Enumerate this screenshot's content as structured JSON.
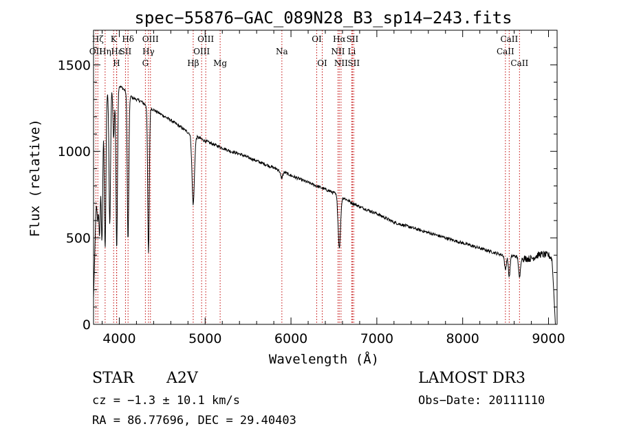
{
  "chart_data": {
    "type": "line",
    "title": "spec−55876−GAC_089N28_B3_sp14−243.fits",
    "xlabel": "Wavelength (Å)",
    "ylabel": "Flux (relative)",
    "xlim": [
      3700,
      9100
    ],
    "ylim": [
      0,
      1700
    ],
    "x_ticks": [
      4000,
      5000,
      6000,
      7000,
      8000,
      9000
    ],
    "x_tick_labels": [
      "4000",
      "5000",
      "6000",
      "7000",
      "8000",
      "9000"
    ],
    "y_ticks": [
      0,
      500,
      1000,
      1500
    ],
    "y_tick_labels": [
      "0",
      "500",
      "1000",
      "1500"
    ],
    "grid": false,
    "series": [
      {
        "name": "flux",
        "continuum_points": [
          [
            3700,
            150
          ],
          [
            3730,
            700
          ],
          [
            3760,
            1050
          ],
          [
            3800,
            1200
          ],
          [
            3850,
            1330
          ],
          [
            3900,
            1380
          ],
          [
            3960,
            1380
          ],
          [
            4000,
            1380
          ],
          [
            4050,
            1360
          ],
          [
            4100,
            1335
          ],
          [
            4150,
            1310
          ],
          [
            4200,
            1300
          ],
          [
            4250,
            1290
          ],
          [
            4300,
            1270
          ],
          [
            4400,
            1240
          ],
          [
            4500,
            1210
          ],
          [
            4600,
            1180
          ],
          [
            4700,
            1145
          ],
          [
            4800,
            1110
          ],
          [
            4900,
            1085
          ],
          [
            5000,
            1060
          ],
          [
            5100,
            1040
          ],
          [
            5200,
            1020
          ],
          [
            5300,
            1000
          ],
          [
            5400,
            985
          ],
          [
            5500,
            965
          ],
          [
            5600,
            945
          ],
          [
            5700,
            925
          ],
          [
            5800,
            905
          ],
          [
            5900,
            885
          ],
          [
            6000,
            860
          ],
          [
            6100,
            840
          ],
          [
            6200,
            820
          ],
          [
            6300,
            800
          ],
          [
            6400,
            780
          ],
          [
            6500,
            760
          ],
          [
            6600,
            735
          ],
          [
            6700,
            705
          ],
          [
            6800,
            680
          ],
          [
            6900,
            660
          ],
          [
            7000,
            640
          ],
          [
            7100,
            615
          ],
          [
            7200,
            590
          ],
          [
            7300,
            575
          ],
          [
            7400,
            560
          ],
          [
            7500,
            545
          ],
          [
            7600,
            530
          ],
          [
            7700,
            515
          ],
          [
            7800,
            500
          ],
          [
            7900,
            485
          ],
          [
            8000,
            470
          ],
          [
            8100,
            455
          ],
          [
            8200,
            440
          ],
          [
            8300,
            425
          ],
          [
            8400,
            410
          ],
          [
            8500,
            395
          ],
          [
            8600,
            395
          ],
          [
            8700,
            380
          ],
          [
            8800,
            380
          ],
          [
            8900,
            405
          ],
          [
            9000,
            400
          ],
          [
            9040,
            380
          ],
          [
            9060,
            200
          ],
          [
            9080,
            0
          ]
        ],
        "absorption_features": [
          [
            3750,
            300
          ],
          [
            3771,
            550
          ],
          [
            3798,
            700
          ],
          [
            3835,
            850
          ],
          [
            3889,
            800
          ],
          [
            3934,
            300
          ],
          [
            3970,
            950
          ],
          [
            4102,
            850
          ],
          [
            4340,
            850
          ],
          [
            4861,
            400
          ],
          [
            5890,
            40
          ],
          [
            6563,
            300
          ],
          [
            8498,
            80
          ],
          [
            8542,
            120
          ],
          [
            8662,
            120
          ]
        ]
      }
    ],
    "line_markers": [
      {
        "name": "Hζ",
        "wavelength": 3750,
        "row": 1
      },
      {
        "name": "OII",
        "wavelength": 3727,
        "row": 2
      },
      {
        "name": "Hη",
        "wavelength": 3835,
        "row": 2
      },
      {
        "name": "K",
        "wavelength": 3934,
        "row": 1
      },
      {
        "name": "Hε",
        "wavelength": 3970,
        "row": 2
      },
      {
        "name": "H",
        "wavelength": 3968,
        "row": 3
      },
      {
        "name": "Hδ",
        "wavelength": 4102,
        "row": 1
      },
      {
        "name": "SII",
        "wavelength": 4072,
        "row": 2
      },
      {
        "name": "OIII",
        "wavelength": 4363,
        "row": 1
      },
      {
        "name": "Hγ",
        "wavelength": 4340,
        "row": 2
      },
      {
        "name": "G",
        "wavelength": 4304,
        "row": 3
      },
      {
        "name": "Hβ",
        "wavelength": 4861,
        "row": 3
      },
      {
        "name": "OIII",
        "wavelength": 4959,
        "row": 2
      },
      {
        "name": "OIII",
        "wavelength": 5007,
        "row": 1
      },
      {
        "name": "Mg",
        "wavelength": 5175,
        "row": 3
      },
      {
        "name": "Na",
        "wavelength": 5894,
        "row": 2
      },
      {
        "name": "OI",
        "wavelength": 6300,
        "row": 1
      },
      {
        "name": "OI",
        "wavelength": 6364,
        "row": 3
      },
      {
        "name": "Hα",
        "wavelength": 6563,
        "row": 1
      },
      {
        "name": "NII",
        "wavelength": 6548,
        "row": 2
      },
      {
        "name": "NII",
        "wavelength": 6583,
        "row": 3
      },
      {
        "name": "SII",
        "wavelength": 6716,
        "row": 1
      },
      {
        "name": "Li",
        "wavelength": 6708,
        "row": 2
      },
      {
        "name": "SII",
        "wavelength": 6731,
        "row": 3
      },
      {
        "name": "CaII",
        "wavelength": 8542,
        "row": 1
      },
      {
        "name": "CaII",
        "wavelength": 8498,
        "row": 2
      },
      {
        "name": "CaII",
        "wavelength": 8662,
        "row": 3
      }
    ]
  },
  "info": {
    "object_class": "STAR",
    "subclass": "A2V",
    "survey": "LAMOST DR3",
    "redshift": "cz = −1.3 ± 10.1 km/s",
    "obs_date": "Obs−Date: 20111110",
    "coords": "RA =  86.77696, DEC =  29.40403"
  },
  "colors": {
    "marker": "#c00000",
    "spectrum": "#000000",
    "axes": "#000000"
  }
}
